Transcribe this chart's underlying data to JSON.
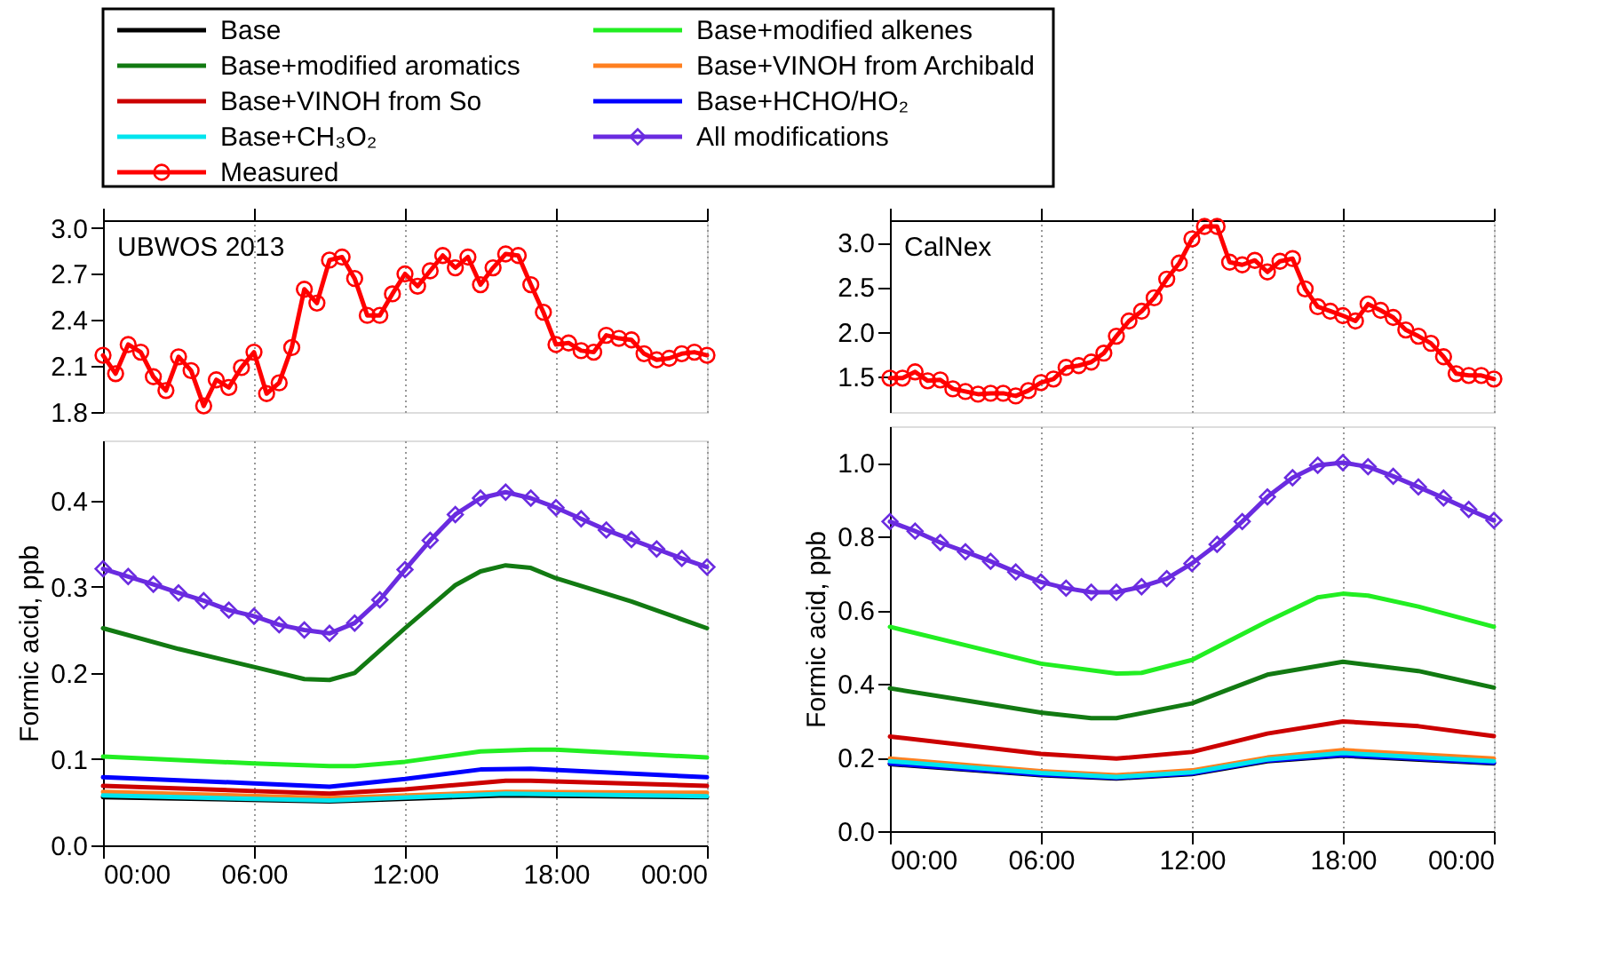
{
  "chart_data": [
    {
      "type": "line",
      "title": "UBWOS 2013",
      "legend": "top",
      "grid": "x",
      "tick_labels": "y",
      "xlim": [
        0,
        24
      ],
      "ylim": [
        1.8,
        3.05
      ],
      "xticks": [
        {
          "value": 0,
          "label": null
        },
        {
          "value": 6,
          "label": null
        },
        {
          "value": 12,
          "label": null
        },
        {
          "value": 18,
          "label": null
        },
        {
          "value": 24,
          "label": null
        }
      ],
      "yticks": [
        1.8,
        2.1,
        2.4,
        2.7,
        {
          "value": 3,
          "label": "3.0"
        }
      ],
      "series": [
        {
          "name": "Measured",
          "color": "#ff0000",
          "marker": "circle",
          "x": [
            0,
            0.5,
            1,
            1.5,
            2,
            2.5,
            3,
            3.5,
            4,
            4.5,
            5,
            5.5,
            6,
            6.5,
            7,
            7.5,
            8,
            8.5,
            9,
            9.5,
            10,
            10.5,
            11,
            11.5,
            12,
            12.5,
            13,
            13.5,
            14,
            14.5,
            15,
            15.5,
            16,
            16.5,
            17,
            17.5,
            18,
            18.5,
            19,
            19.5,
            20,
            20.5,
            21,
            21.5,
            22,
            22.5,
            23,
            23.5,
            24
          ],
          "values": [
            2.17,
            2.05,
            2.24,
            2.19,
            2.03,
            1.94,
            2.16,
            2.07,
            1.84,
            2.01,
            1.96,
            2.09,
            2.19,
            1.92,
            1.99,
            2.22,
            2.6,
            2.51,
            2.79,
            2.81,
            2.67,
            2.43,
            2.43,
            2.57,
            2.7,
            2.62,
            2.72,
            2.82,
            2.74,
            2.81,
            2.63,
            2.74,
            2.83,
            2.82,
            2.63,
            2.45,
            2.24,
            2.25,
            2.2,
            2.19,
            2.3,
            2.28,
            2.27,
            2.18,
            2.14,
            2.15,
            2.18,
            2.19,
            2.17
          ]
        }
      ]
    },
    {
      "type": "line",
      "ylabel": "Formic acid, ppb",
      "legend": "top",
      "grid": "x",
      "xlim": [
        0,
        24
      ],
      "ylim": [
        0,
        0.47
      ],
      "xticks": [
        {
          "value": 0,
          "label": "00:00"
        },
        {
          "value": 6,
          "label": "06:00"
        },
        {
          "value": 12,
          "label": "12:00"
        },
        {
          "value": 18,
          "label": "18:00"
        },
        {
          "value": 24,
          "label": "00:00"
        }
      ],
      "yticks": [
        {
          "value": 0,
          "label": "0.0"
        },
        0.1,
        0.2,
        0.3,
        0.4
      ],
      "series": [
        {
          "name": "Base",
          "color": "#000000",
          "marker": "none",
          "x": [
            0,
            9,
            16,
            24
          ],
          "values": [
            0.056,
            0.051,
            0.058,
            0.056
          ]
        },
        {
          "name": "Base+modified alkenes",
          "color": "#22ee22",
          "marker": "none",
          "x": [
            0,
            6,
            9,
            10,
            12,
            15,
            17,
            18,
            24
          ],
          "values": [
            0.103,
            0.095,
            0.092,
            0.092,
            0.097,
            0.109,
            0.111,
            0.111,
            0.102
          ]
        },
        {
          "name": "Base+modified aromatics",
          "color": "#127a12",
          "marker": "none",
          "x": [
            0,
            3,
            6,
            8,
            9,
            10,
            12,
            14,
            15,
            16,
            17,
            18,
            21,
            24
          ],
          "values": [
            0.252,
            0.228,
            0.207,
            0.193,
            0.192,
            0.2,
            0.252,
            0.302,
            0.318,
            0.325,
            0.322,
            0.31,
            0.283,
            0.252
          ]
        },
        {
          "name": "Base+VINOH from Archibald",
          "color": "#ff8020",
          "marker": "none",
          "x": [
            0,
            9,
            16,
            24
          ],
          "values": [
            0.062,
            0.055,
            0.062,
            0.061
          ]
        },
        {
          "name": "Base+VINOH from So",
          "color": "#cc0000",
          "marker": "none",
          "x": [
            0,
            6,
            9,
            12,
            16,
            17,
            24
          ],
          "values": [
            0.069,
            0.063,
            0.06,
            0.065,
            0.075,
            0.075,
            0.069
          ]
        },
        {
          "name": "Base+HCHO/HO₂",
          "color": "#0000ff",
          "marker": "none",
          "x": [
            0,
            6,
            9,
            12,
            15,
            17,
            24
          ],
          "values": [
            0.079,
            0.072,
            0.068,
            0.077,
            0.088,
            0.089,
            0.079
          ]
        },
        {
          "name": "Base+CH₃O₂",
          "color": "#00e5ee",
          "marker": "none",
          "x": [
            0,
            9,
            16,
            24
          ],
          "values": [
            0.058,
            0.052,
            0.06,
            0.057
          ]
        },
        {
          "name": "All modifications",
          "color": "#6a2be0",
          "marker": "diamond",
          "x": [
            0,
            1,
            2,
            3,
            4,
            5,
            6,
            7,
            8,
            9,
            10,
            11,
            12,
            13,
            14,
            15,
            16,
            17,
            18,
            19,
            20,
            21,
            22,
            23,
            24
          ],
          "values": [
            0.321,
            0.312,
            0.303,
            0.293,
            0.284,
            0.273,
            0.266,
            0.256,
            0.25,
            0.246,
            0.258,
            0.285,
            0.32,
            0.354,
            0.384,
            0.403,
            0.41,
            0.403,
            0.392,
            0.379,
            0.366,
            0.355,
            0.344,
            0.333,
            0.323
          ]
        }
      ]
    },
    {
      "type": "line",
      "title": "CalNex",
      "grid": "x",
      "tick_labels": "y",
      "xlim": [
        0,
        24
      ],
      "ylim": [
        1.1,
        3.25
      ],
      "xticks": [
        {
          "value": 0,
          "label": null
        },
        {
          "value": 6,
          "label": null
        },
        {
          "value": 12,
          "label": null
        },
        {
          "value": 18,
          "label": null
        },
        {
          "value": 24,
          "label": null
        }
      ],
      "yticks": [
        1.5,
        {
          "value": 2,
          "label": "2.0"
        },
        2.5,
        {
          "value": 3,
          "label": "3.0"
        }
      ],
      "series": [
        {
          "name": "Measured",
          "color": "#ff0000",
          "marker": "circle",
          "x": [
            0,
            0.5,
            1,
            1.5,
            2,
            2.5,
            3,
            3.5,
            4,
            4.5,
            5,
            5.5,
            6,
            6.5,
            7,
            7.5,
            8,
            8.5,
            9,
            9.5,
            10,
            10.5,
            11,
            11.5,
            12,
            12.5,
            13,
            13.5,
            14,
            14.5,
            15,
            15.5,
            16,
            16.5,
            17,
            17.5,
            18,
            18.5,
            19,
            19.5,
            20,
            20.5,
            21,
            21.5,
            22,
            22.5,
            23,
            23.5,
            24
          ],
          "values": [
            1.48,
            1.48,
            1.55,
            1.45,
            1.46,
            1.36,
            1.33,
            1.3,
            1.31,
            1.31,
            1.28,
            1.34,
            1.43,
            1.47,
            1.6,
            1.62,
            1.66,
            1.76,
            1.95,
            2.12,
            2.23,
            2.38,
            2.59,
            2.77,
            3.04,
            3.18,
            3.18,
            2.78,
            2.75,
            2.8,
            2.67,
            2.79,
            2.82,
            2.48,
            2.28,
            2.23,
            2.18,
            2.12,
            2.31,
            2.24,
            2.16,
            2.02,
            1.95,
            1.87,
            1.72,
            1.53,
            1.51,
            1.51,
            1.47
          ]
        }
      ]
    },
    {
      "type": "line",
      "ylabel": "Formic acid, ppb",
      "grid": "x",
      "xlim": [
        0,
        24
      ],
      "ylim": [
        0,
        1.1
      ],
      "xticks": [
        {
          "value": 0,
          "label": "00:00"
        },
        {
          "value": 6,
          "label": "06:00"
        },
        {
          "value": 12,
          "label": "12:00"
        },
        {
          "value": 18,
          "label": "18:00"
        },
        {
          "value": 24,
          "label": "00:00"
        }
      ],
      "yticks": [
        {
          "value": 0,
          "label": "0.0"
        },
        0.2,
        0.4,
        0.6,
        0.8,
        {
          "value": 1,
          "label": "1.0"
        }
      ],
      "series": [
        {
          "name": "Base",
          "color": "#000000",
          "marker": "none",
          "x": [
            0,
            6,
            9,
            12,
            15,
            18,
            24
          ],
          "values": [
            0.182,
            0.152,
            0.143,
            0.155,
            0.19,
            0.205,
            0.184
          ]
        },
        {
          "name": "Base+modified alkenes",
          "color": "#22ee22",
          "marker": "none",
          "x": [
            0,
            3,
            6,
            9,
            10,
            12,
            15,
            17,
            18,
            19,
            21,
            24
          ],
          "values": [
            0.555,
            0.505,
            0.455,
            0.428,
            0.43,
            0.465,
            0.57,
            0.635,
            0.645,
            0.64,
            0.61,
            0.555
          ]
        },
        {
          "name": "Base+modified aromatics",
          "color": "#127a12",
          "marker": "none",
          "x": [
            0,
            3,
            6,
            8,
            9,
            12,
            15,
            18,
            21,
            24
          ],
          "values": [
            0.388,
            0.355,
            0.322,
            0.307,
            0.307,
            0.347,
            0.425,
            0.46,
            0.435,
            0.39
          ]
        },
        {
          "name": "Base+VINOH from Archibald",
          "color": "#ff8020",
          "marker": "none",
          "x": [
            0,
            6,
            9,
            12,
            15,
            18,
            24
          ],
          "values": [
            0.197,
            0.163,
            0.152,
            0.165,
            0.2,
            0.22,
            0.197
          ]
        },
        {
          "name": "Base+VINOH from So",
          "color": "#cc0000",
          "marker": "none",
          "x": [
            0,
            6,
            9,
            12,
            15,
            18,
            21,
            24
          ],
          "values": [
            0.257,
            0.21,
            0.197,
            0.215,
            0.265,
            0.298,
            0.285,
            0.258
          ]
        },
        {
          "name": "Base+HCHO/HO₂",
          "color": "#0000ff",
          "marker": "none",
          "x": [
            0,
            6,
            9,
            12,
            15,
            18,
            24
          ],
          "values": [
            0.184,
            0.154,
            0.145,
            0.157,
            0.192,
            0.207,
            0.186
          ]
        },
        {
          "name": "Base+CH₃O₂",
          "color": "#00e5ee",
          "marker": "none",
          "x": [
            0,
            6,
            9,
            12,
            15,
            18,
            24
          ],
          "values": [
            0.19,
            0.158,
            0.147,
            0.16,
            0.195,
            0.212,
            0.19
          ]
        },
        {
          "name": "All modifications",
          "color": "#6a2be0",
          "marker": "diamond",
          "x": [
            0,
            1,
            2,
            3,
            4,
            5,
            6,
            7,
            8,
            9,
            10,
            11,
            12,
            13,
            14,
            15,
            16,
            17,
            18,
            19,
            20,
            21,
            22,
            23,
            24
          ],
          "values": [
            0.841,
            0.815,
            0.784,
            0.759,
            0.733,
            0.704,
            0.677,
            0.66,
            0.649,
            0.649,
            0.664,
            0.686,
            0.727,
            0.779,
            0.841,
            0.908,
            0.96,
            0.994,
            1.001,
            0.99,
            0.964,
            0.935,
            0.905,
            0.874,
            0.844
          ]
        }
      ]
    }
  ]
}
